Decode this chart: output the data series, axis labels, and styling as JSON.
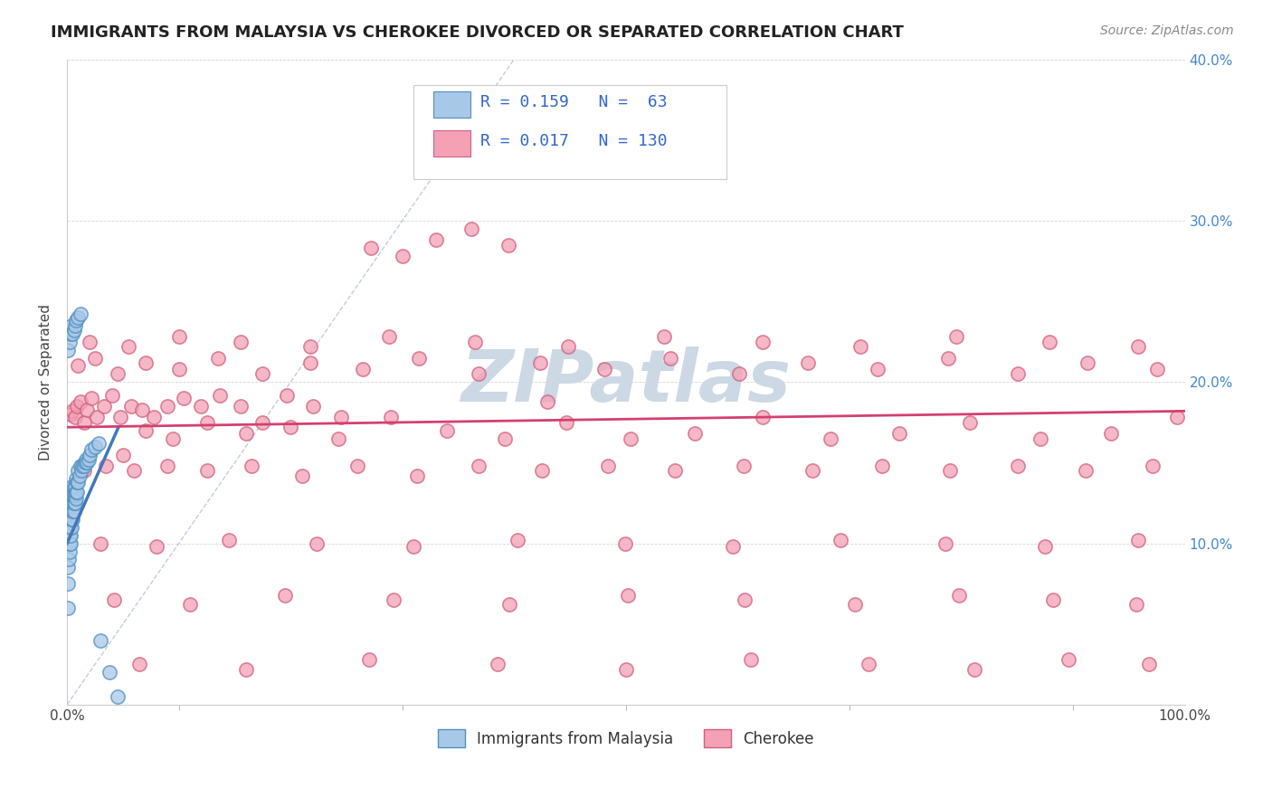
{
  "title": "IMMIGRANTS FROM MALAYSIA VS CHEROKEE DIVORCED OR SEPARATED CORRELATION CHART",
  "source_text": "Source: ZipAtlas.com",
  "ylabel": "Divorced or Separated",
  "xlim": [
    0,
    1.0
  ],
  "ylim": [
    0,
    0.4
  ],
  "xticks": [
    0.0,
    0.2,
    0.4,
    0.6,
    0.8,
    1.0
  ],
  "yticks": [
    0.0,
    0.1,
    0.2,
    0.3,
    0.4
  ],
  "xtick_labels": [
    "0.0%",
    "",
    "",
    "",
    "",
    "100.0%"
  ],
  "ytick_labels_right": [
    "",
    "10.0%",
    "20.0%",
    "30.0%",
    "40.0%"
  ],
  "color_blue_face": "#a8c8e8",
  "color_blue_edge": "#5090c0",
  "color_pink_face": "#f4a0b5",
  "color_pink_edge": "#d06080",
  "color_pink_trend": "#d44070",
  "color_blue_trend": "#4477bb",
  "color_diag": "#99aacc",
  "watermark_text": "ZIPatlas",
  "watermark_color": "#ccd8e4",
  "blue_x": [
    0.0005,
    0.001,
    0.001,
    0.0015,
    0.002,
    0.002,
    0.002,
    0.002,
    0.003,
    0.003,
    0.003,
    0.003,
    0.003,
    0.004,
    0.004,
    0.004,
    0.004,
    0.004,
    0.004,
    0.005,
    0.005,
    0.005,
    0.005,
    0.006,
    0.006,
    0.006,
    0.006,
    0.007,
    0.007,
    0.007,
    0.008,
    0.008,
    0.008,
    0.009,
    0.009,
    0.01,
    0.01,
    0.011,
    0.012,
    0.013,
    0.014,
    0.015,
    0.016,
    0.017,
    0.018,
    0.019,
    0.02,
    0.022,
    0.025,
    0.028,
    0.001,
    0.002,
    0.003,
    0.004,
    0.005,
    0.006,
    0.007,
    0.008,
    0.01,
    0.012,
    0.03,
    0.038,
    0.045
  ],
  "blue_y": [
    0.06,
    0.085,
    0.075,
    0.09,
    0.095,
    0.1,
    0.105,
    0.11,
    0.1,
    0.105,
    0.11,
    0.115,
    0.12,
    0.11,
    0.115,
    0.12,
    0.125,
    0.13,
    0.135,
    0.115,
    0.12,
    0.125,
    0.13,
    0.12,
    0.125,
    0.13,
    0.135,
    0.125,
    0.13,
    0.135,
    0.128,
    0.132,
    0.14,
    0.132,
    0.138,
    0.138,
    0.145,
    0.142,
    0.148,
    0.145,
    0.148,
    0.148,
    0.15,
    0.152,
    0.15,
    0.152,
    0.155,
    0.158,
    0.16,
    0.162,
    0.22,
    0.225,
    0.23,
    0.235,
    0.23,
    0.232,
    0.235,
    0.238,
    0.24,
    0.242,
    0.04,
    0.02,
    0.005
  ],
  "pink_x": [
    0.003,
    0.005,
    0.007,
    0.009,
    0.012,
    0.015,
    0.018,
    0.022,
    0.027,
    0.033,
    0.04,
    0.048,
    0.057,
    0.067,
    0.078,
    0.09,
    0.104,
    0.12,
    0.137,
    0.155,
    0.175,
    0.197,
    0.22,
    0.245,
    0.272,
    0.3,
    0.33,
    0.362,
    0.395,
    0.43,
    0.05,
    0.07,
    0.095,
    0.125,
    0.16,
    0.2,
    0.243,
    0.29,
    0.34,
    0.392,
    0.447,
    0.504,
    0.562,
    0.622,
    0.683,
    0.745,
    0.808,
    0.871,
    0.934,
    0.993,
    0.01,
    0.025,
    0.045,
    0.07,
    0.1,
    0.135,
    0.175,
    0.218,
    0.265,
    0.315,
    0.368,
    0.423,
    0.481,
    0.54,
    0.601,
    0.663,
    0.725,
    0.788,
    0.851,
    0.913,
    0.975,
    0.015,
    0.035,
    0.06,
    0.09,
    0.125,
    0.165,
    0.21,
    0.26,
    0.313,
    0.368,
    0.425,
    0.484,
    0.544,
    0.605,
    0.667,
    0.729,
    0.79,
    0.851,
    0.911,
    0.971,
    0.02,
    0.055,
    0.1,
    0.155,
    0.218,
    0.288,
    0.365,
    0.448,
    0.534,
    0.622,
    0.71,
    0.796,
    0.879,
    0.958,
    0.03,
    0.08,
    0.145,
    0.223,
    0.31,
    0.403,
    0.499,
    0.596,
    0.692,
    0.786,
    0.875,
    0.958,
    0.042,
    0.11,
    0.195,
    0.292,
    0.396,
    0.502,
    0.606,
    0.705,
    0.798,
    0.882,
    0.957,
    0.065,
    0.16,
    0.27,
    0.385,
    0.5,
    0.612,
    0.717,
    0.812,
    0.896,
    0.968
  ],
  "pink_y": [
    0.18,
    0.182,
    0.178,
    0.185,
    0.188,
    0.175,
    0.183,
    0.19,
    0.178,
    0.185,
    0.192,
    0.178,
    0.185,
    0.183,
    0.178,
    0.185,
    0.19,
    0.185,
    0.192,
    0.185,
    0.175,
    0.192,
    0.185,
    0.178,
    0.283,
    0.278,
    0.288,
    0.295,
    0.285,
    0.188,
    0.155,
    0.17,
    0.165,
    0.175,
    0.168,
    0.172,
    0.165,
    0.178,
    0.17,
    0.165,
    0.175,
    0.165,
    0.168,
    0.178,
    0.165,
    0.168,
    0.175,
    0.165,
    0.168,
    0.178,
    0.21,
    0.215,
    0.205,
    0.212,
    0.208,
    0.215,
    0.205,
    0.212,
    0.208,
    0.215,
    0.205,
    0.212,
    0.208,
    0.215,
    0.205,
    0.212,
    0.208,
    0.215,
    0.205,
    0.212,
    0.208,
    0.145,
    0.148,
    0.145,
    0.148,
    0.145,
    0.148,
    0.142,
    0.148,
    0.142,
    0.148,
    0.145,
    0.148,
    0.145,
    0.148,
    0.145,
    0.148,
    0.145,
    0.148,
    0.145,
    0.148,
    0.225,
    0.222,
    0.228,
    0.225,
    0.222,
    0.228,
    0.225,
    0.222,
    0.228,
    0.225,
    0.222,
    0.228,
    0.225,
    0.222,
    0.1,
    0.098,
    0.102,
    0.1,
    0.098,
    0.102,
    0.1,
    0.098,
    0.102,
    0.1,
    0.098,
    0.102,
    0.065,
    0.062,
    0.068,
    0.065,
    0.062,
    0.068,
    0.065,
    0.062,
    0.068,
    0.065,
    0.062,
    0.025,
    0.022,
    0.028,
    0.025,
    0.022,
    0.028,
    0.025,
    0.022,
    0.028,
    0.025
  ]
}
